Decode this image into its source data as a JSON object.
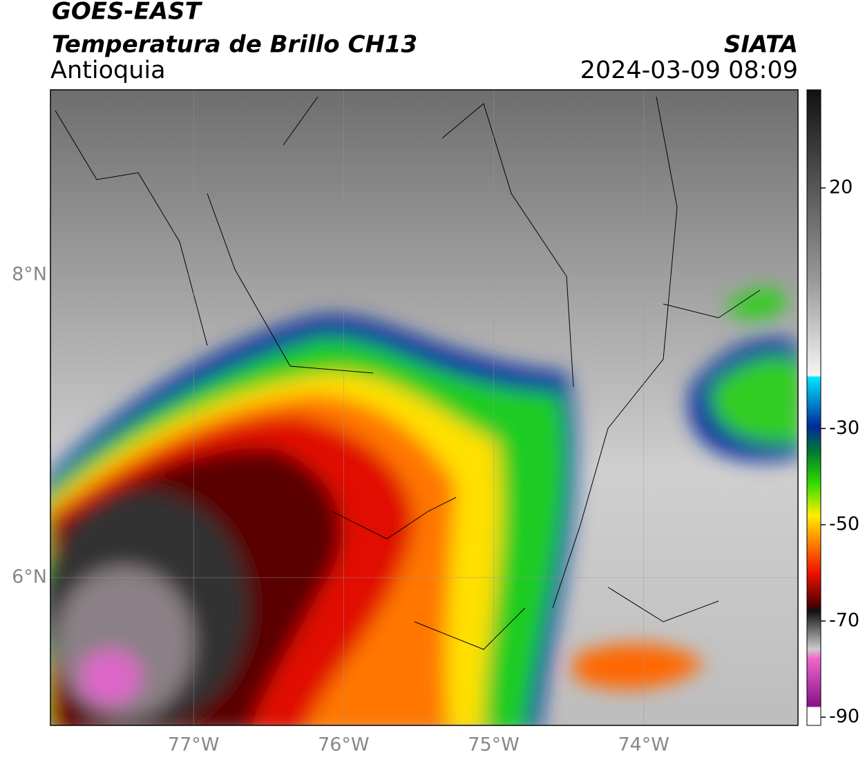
{
  "header": {
    "title": "GOES-EAST",
    "subtitle": "Temperatura de Brillo CH13",
    "region": "Antioquia",
    "source": "SIATA",
    "datetime": "2024-03-09 08:09"
  },
  "map": {
    "xlim": [
      -77.954,
      -72.972
    ],
    "ylim": [
      5.023,
      9.224
    ],
    "xticks": [
      {
        "value": -77,
        "label": "77°W"
      },
      {
        "value": -76,
        "label": "76°W"
      },
      {
        "value": -75,
        "label": "75°W"
      },
      {
        "value": -74,
        "label": "74°W"
      }
    ],
    "yticks": [
      {
        "value": 8,
        "label": "8°N"
      },
      {
        "value": 6,
        "label": "6°N"
      }
    ],
    "grid": true
  },
  "colorbar": {
    "lim": [
      -91.7,
      40.4
    ],
    "ticks": [
      20,
      -30,
      -50,
      -70,
      -90
    ]
  }
}
